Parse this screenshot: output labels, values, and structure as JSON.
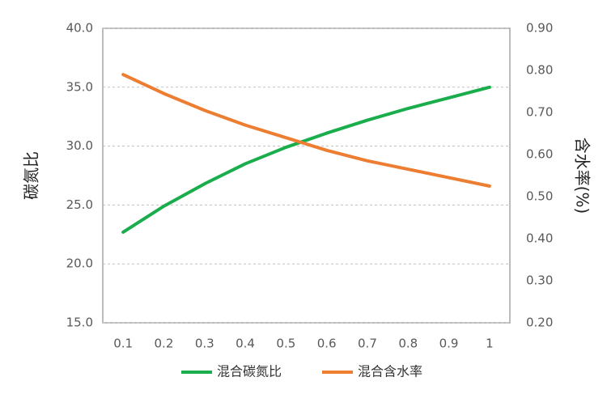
{
  "chart_data": {
    "type": "line",
    "categories": [
      "0.1",
      "0.2",
      "0.3",
      "0.4",
      "0.5",
      "0.6",
      "0.7",
      "0.8",
      "0.9",
      "1"
    ],
    "y_label": "碳氮比",
    "y2_label": "含水率(%)",
    "ylim": [
      15,
      40
    ],
    "yticks": [
      {
        "value": 15,
        "label": "15.0"
      },
      {
        "value": 20,
        "label": "20.0"
      },
      {
        "value": 25,
        "label": "25.0"
      },
      {
        "value": 30,
        "label": "30.0"
      },
      {
        "value": 35,
        "label": "35.0"
      },
      {
        "value": 40,
        "label": "40.0"
      }
    ],
    "y2lim": [
      0.2,
      0.9
    ],
    "y2ticks": [
      {
        "value": 0.2,
        "label": "0.20"
      },
      {
        "value": 0.3,
        "label": "0.30"
      },
      {
        "value": 0.4,
        "label": "0.40"
      },
      {
        "value": 0.5,
        "label": "0.50"
      },
      {
        "value": 0.6,
        "label": "0.60"
      },
      {
        "value": 0.7,
        "label": "0.70"
      },
      {
        "value": 0.8,
        "label": "0.80"
      },
      {
        "value": 0.9,
        "label": "0.90"
      }
    ],
    "grid": true,
    "series": [
      {
        "name": "混合碳氮比",
        "color": "#1aad4b",
        "values": [
          22.7,
          24.9,
          26.8,
          28.5,
          29.9,
          31.1,
          32.2,
          33.2,
          34.1,
          35.0
        ]
      },
      {
        "name": "混合含水率",
        "color": "#ed7d31",
        "axis": "y2",
        "values": [
          0.79,
          0.745,
          0.705,
          0.67,
          0.64,
          0.61,
          0.585,
          0.565,
          0.545,
          0.525
        ]
      }
    ]
  }
}
